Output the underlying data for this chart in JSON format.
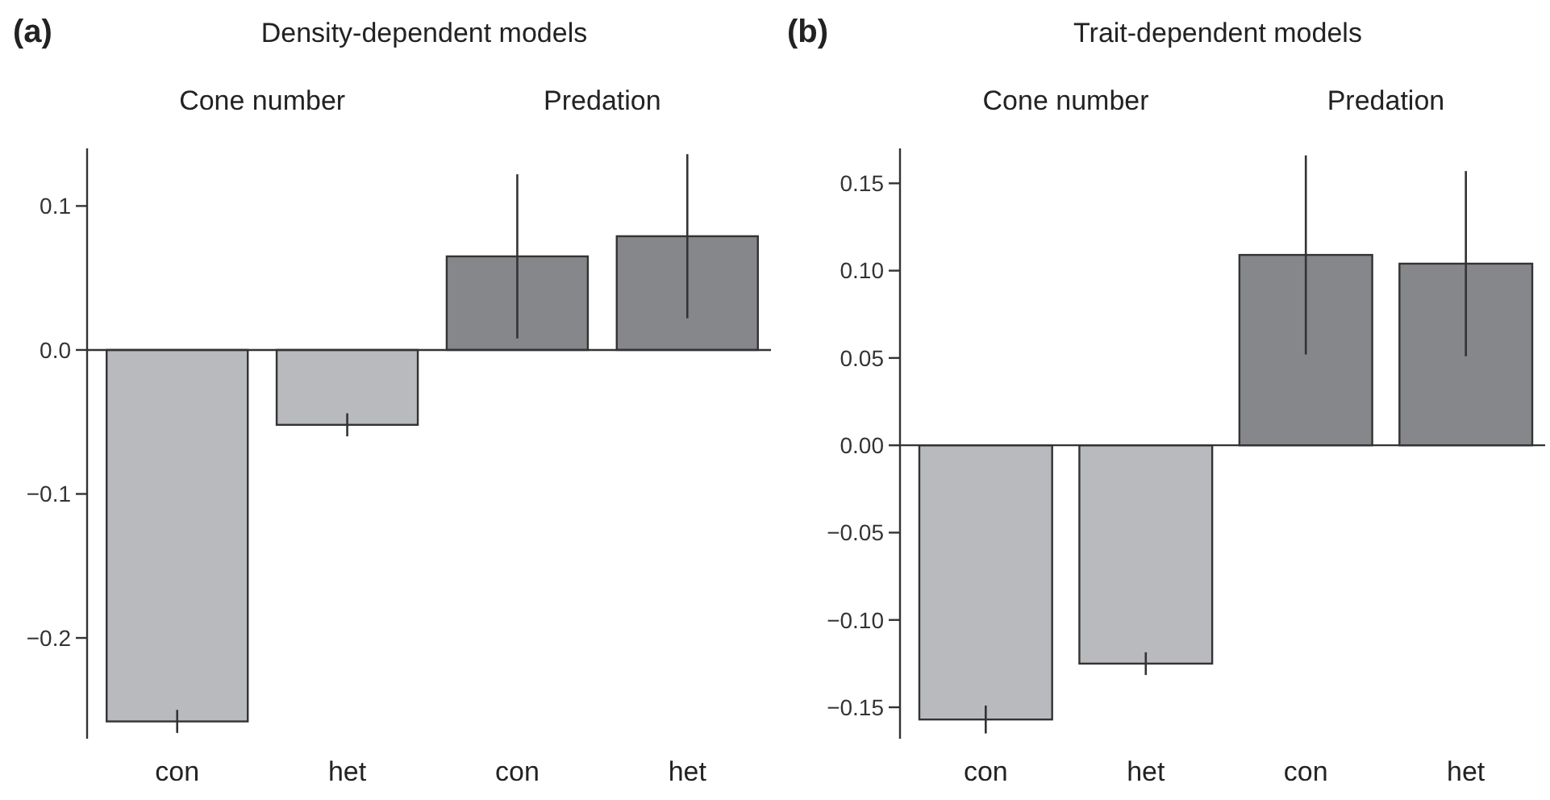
{
  "chart_data": [
    {
      "type": "bar",
      "title": "(a)",
      "subtitle": "Density-dependent models",
      "annotations": [
        "Cone number",
        "Predation"
      ],
      "categories": [
        "con",
        "het",
        "con",
        "het"
      ],
      "values": [
        -0.258,
        -0.052,
        0.065,
        0.079
      ],
      "errors": [
        0.008,
        0.008,
        0.057,
        0.057
      ],
      "colors": [
        "#b9babd",
        "#b9babd",
        "#86878b",
        "#86878b"
      ],
      "ylim": [
        -0.27,
        0.14
      ],
      "yticks": [
        {
          "value": -0.2,
          "label": "−0.2"
        },
        {
          "value": -0.1,
          "label": "−0.1"
        },
        {
          "value": 0,
          "label": "0.0"
        },
        {
          "value": 0.1,
          "label": "0.1"
        }
      ]
    },
    {
      "type": "bar",
      "title": "(b)",
      "subtitle": "Trait-dependent models",
      "annotations": [
        "Cone number",
        "Predation"
      ],
      "categories": [
        "con",
        "het",
        "con",
        "het"
      ],
      "values": [
        -0.157,
        -0.125,
        0.109,
        0.104
      ],
      "errors": [
        0.008,
        0.0065,
        0.057,
        0.053
      ],
      "colors": [
        "#b9babd",
        "#b9babd",
        "#86878b",
        "#86878b"
      ],
      "ylim": [
        -0.168,
        0.17
      ],
      "yticks": [
        {
          "value": -0.15,
          "label": "−0.15"
        },
        {
          "value": -0.1,
          "label": "−0.10"
        },
        {
          "value": -0.05,
          "label": "−0.05"
        },
        {
          "value": 0,
          "label": "0.00"
        },
        {
          "value": 0.05,
          "label": "0.05"
        },
        {
          "value": 0.1,
          "label": "0.10"
        },
        {
          "value": 0.15,
          "label": "0.15"
        }
      ]
    }
  ]
}
